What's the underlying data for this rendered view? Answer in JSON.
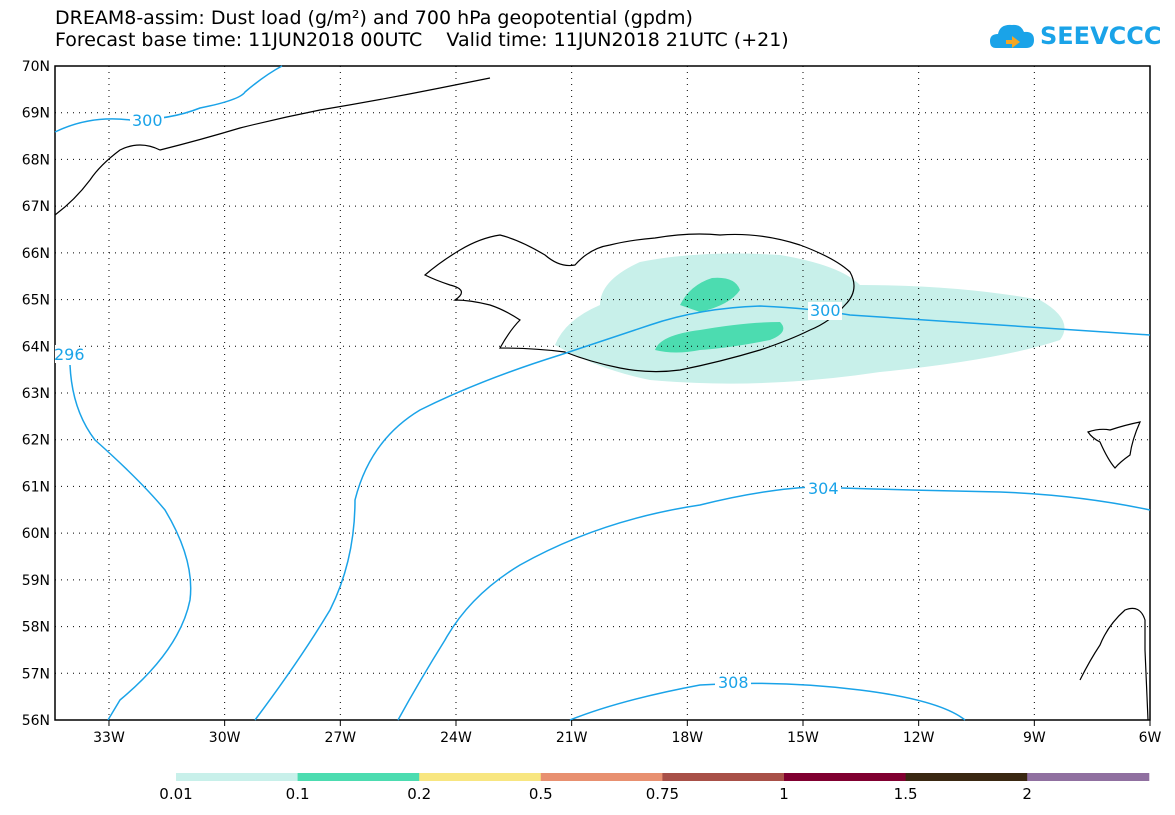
{
  "title": {
    "line1": "DREAM8-assim: Dust load (g/m²) and 700 hPa geopotential (gpdm)",
    "line2": "Forecast base time: 11JUN2018 00UTC    Valid time: 11JUN2018 21UTC (+21)"
  },
  "logo": {
    "text": "SEEVCCC",
    "icon": "cloud-icon",
    "color": "#1aa3e8"
  },
  "map": {
    "lat_labels": [
      "70N",
      "69N",
      "68N",
      "67N",
      "66N",
      "65N",
      "64N",
      "63N",
      "62N",
      "61N",
      "60N",
      "59N",
      "58N",
      "57N",
      "56N"
    ],
    "lon_labels": [
      "33W",
      "30W",
      "27W",
      "24W",
      "21W",
      "18W",
      "15W",
      "12W",
      "9W",
      "6W"
    ],
    "contour_labels": [
      "300",
      "296",
      "300",
      "304",
      "308"
    ],
    "contour_color": "#1aa3e8"
  },
  "colorbar": {
    "labels": [
      "0.01",
      "0.1",
      "0.2",
      "0.5",
      "0.75",
      "1",
      "1.5",
      "2"
    ],
    "colors": [
      "#c8f0ea",
      "#4cdcb0",
      "#f8e680",
      "#e89070",
      "#a85048",
      "#800030",
      "#3a2812",
      "#9070a0"
    ]
  }
}
